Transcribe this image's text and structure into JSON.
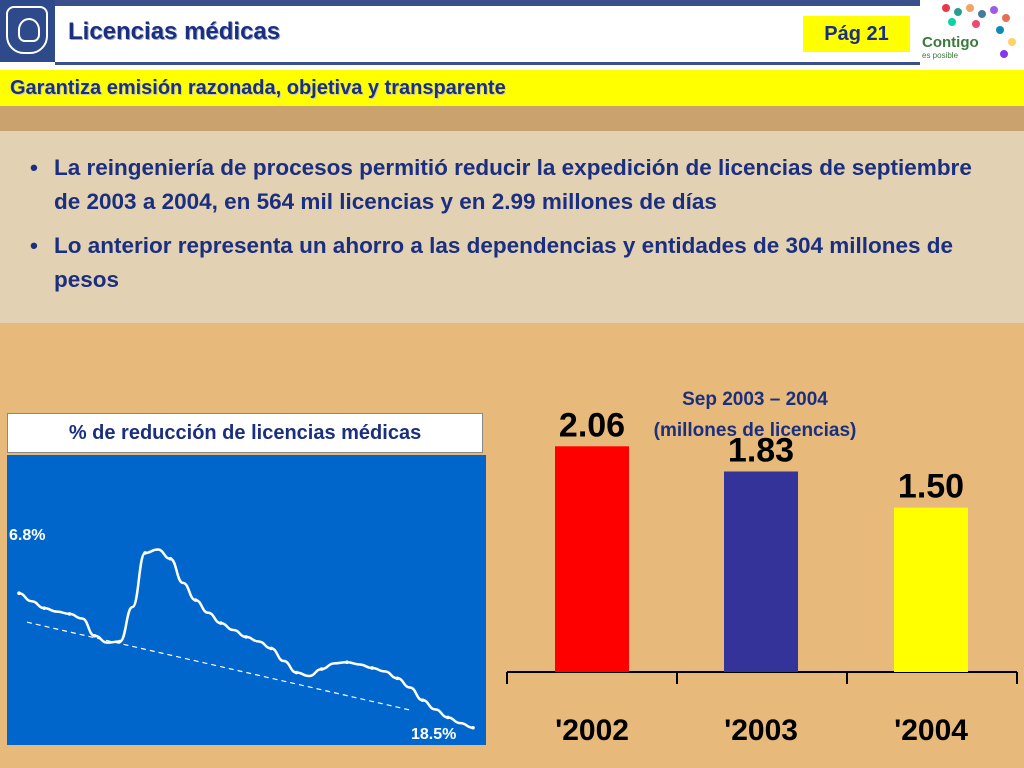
{
  "header": {
    "title": "Licencias médicas",
    "page": "Pág 21",
    "logo_text": "Contigo",
    "logo_sub": "es posible"
  },
  "subtitle": "Garantiza emisión razonada, objetiva y transparente",
  "bullets": [
    {
      "symbol": "•",
      "text": "La reingeniería de procesos permitió reducir la expedición de licencias de septiembre de 2003 a 2004, en 564 mil licencias  y en 2.99 millones de días"
    },
    {
      "symbol": "•",
      "text": "Lo anterior representa un ahorro a las dependencias y entidades de  304 millones de pesos"
    }
  ],
  "colors": {
    "brand_blue": "#1b2f80",
    "accent_yellow": "#ffff00",
    "panel_blue": "#0066cc",
    "bar_2002": "#ff0000",
    "bar_2003": "#333399",
    "bar_2004": "#ffff00"
  },
  "chart_data": [
    {
      "type": "line",
      "title": "% de reducción de licencias médicas",
      "start_label": "6.8%",
      "end_label": "18.5%",
      "trend": "dashed-linear",
      "x": [
        1,
        2,
        3,
        4,
        5,
        6,
        7,
        8,
        9,
        10,
        11,
        12,
        13,
        14,
        15,
        16,
        17,
        18,
        19,
        20,
        21,
        22,
        23,
        24,
        25,
        26,
        27,
        28,
        29,
        30,
        31,
        32,
        33,
        34,
        35,
        36,
        37
      ],
      "values": [
        6.8,
        7.5,
        8.1,
        8.4,
        8.6,
        9.0,
        10.5,
        11.1,
        11.0,
        8.0,
        3.3,
        3.0,
        3.8,
        5.9,
        7.4,
        8.5,
        9.4,
        10.0,
        10.6,
        11.0,
        11.6,
        12.7,
        13.7,
        14.0,
        13.4,
        12.9,
        12.8,
        13.0,
        13.3,
        13.6,
        14.2,
        15.0,
        16.1,
        16.9,
        17.6,
        18.1,
        18.5
      ],
      "ylim": [
        0,
        20
      ]
    },
    {
      "type": "bar",
      "title": "Sep 2003 –  2004",
      "subtitle": "(millones de licencias)",
      "categories": [
        "'2002",
        "'2003",
        "'2004"
      ],
      "values": [
        2.06,
        1.83,
        1.5
      ],
      "labels": [
        "2.06",
        "1.83",
        "1.50"
      ],
      "ylim": [
        0,
        2.3
      ]
    }
  ]
}
